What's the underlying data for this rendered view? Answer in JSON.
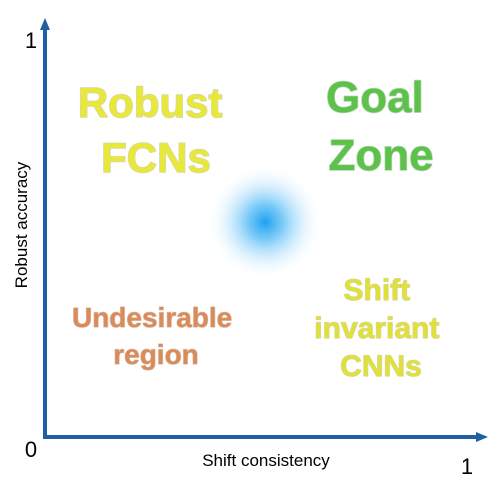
{
  "axes": {
    "x_label": "Shift consistency",
    "y_label": "Robust accuracy",
    "origin_label": "0",
    "x_max_label": "1",
    "y_max_label": "1",
    "axis_color": "#1f5fa3"
  },
  "quadrants": {
    "top_left": {
      "lines": [
        "Robust",
        "FCNs"
      ],
      "color": "#e8e83a"
    },
    "top_right": {
      "lines": [
        "Goal",
        "Zone"
      ],
      "color": "#5cc24a"
    },
    "bottom_left": {
      "lines": [
        "Undesirable",
        "region"
      ],
      "color": "#d98c5a"
    },
    "bottom_right": {
      "lines": [
        "Shift",
        "invariant",
        "CNNs"
      ],
      "color": "#e0e03a"
    }
  },
  "divider_color": "#4fb3e8",
  "center_glow_color": "#1ea0f0"
}
